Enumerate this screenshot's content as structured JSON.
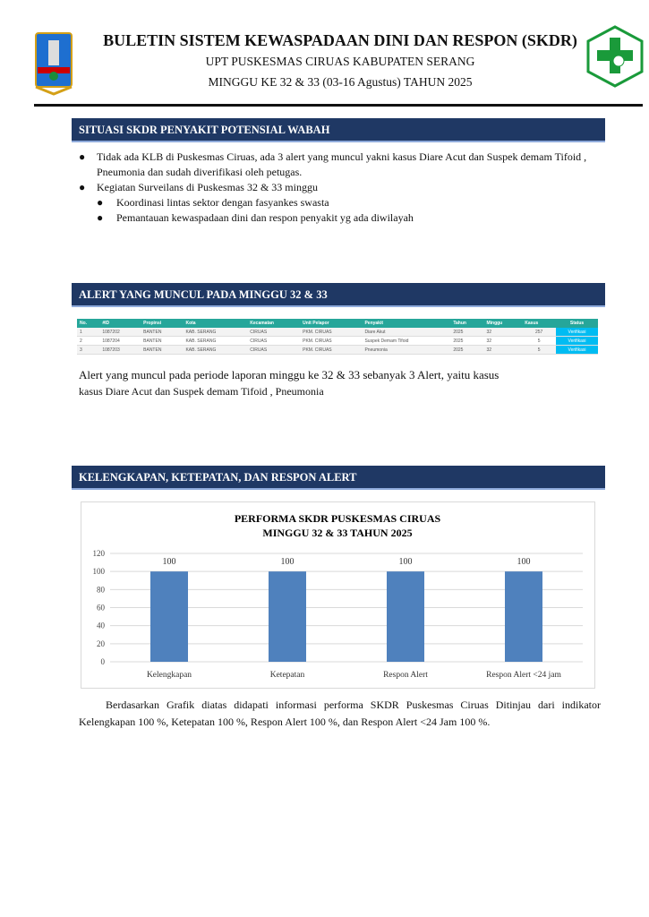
{
  "header": {
    "title": "BULETIN SISTEM KEWASPADAAN DINI DAN RESPON (SKDR)",
    "subtitle": "UPT PUSKESMAS CIRUAS  KABUPATEN SERANG",
    "period": "MINGGU KE  32 & 33 (03-16 Agustus) TAHUN 2025"
  },
  "section1": {
    "title": "SITUASI SKDR PENYAKIT POTENSIAL WABAH",
    "bullets": [
      "Tidak ada KLB di Puskesmas Ciruas, ada  3 alert yang muncul yakni kasus  Diare Acut dan Suspek demam Tifoid , Pneumonia dan sudah diverifikasi oleh petugas.",
      "Kegiatan Surveilans di Puskesmas 32 & 33 minggu"
    ],
    "subbullets": [
      "Koordinasi lintas sektor dengan fasyankes swasta",
      "Pemantauan kewaspadaan dini dan respon penyakit yg ada diwilayah"
    ]
  },
  "section2": {
    "title": "ALERT YANG MUNCUL PADA MINGGU 32 & 33",
    "table": {
      "headers": [
        "No.",
        "#ID",
        "Propinsi",
        "Kota",
        "Kecamatan",
        "Unit Pelapor",
        "Penyakit",
        "Tahun",
        "Minggu",
        "Kasus",
        "Status"
      ],
      "rows": [
        [
          "1",
          "1087202",
          "BANTEN",
          "KAB. SERANG",
          "CIRUAS",
          "PKM. CIRUAS",
          "Diare Akut",
          "2025",
          "32",
          "257",
          "Verifikasi"
        ],
        [
          "2",
          "1087204",
          "BANTEN",
          "KAB. SERANG",
          "CIRUAS",
          "PKM. CIRUAS",
          "Suspek Demam Tifoid",
          "2025",
          "32",
          "5",
          "Verifikasi"
        ],
        [
          "3",
          "1087203",
          "BANTEN",
          "KAB. SERANG",
          "CIRUAS",
          "PKM. CIRUAS",
          "Pneumonia",
          "2025",
          "32",
          "5",
          "Verifikasi"
        ]
      ]
    },
    "text_line1": "Alert yang muncul pada periode laporan minggu ke 32 & 33 sebanyak  3 Alert, yaitu kasus",
    "text_line2": "kasus  Diare Acut dan Suspek demam Tifoid , Pneumonia"
  },
  "section3": {
    "title": "KELENGKAPAN, KETEPATAN, DAN RESPON ALERT",
    "paragraph": "Berdasarkan Grafik diatas  didapati informasi performa SKDR Puskesmas Ciruas Ditinjau dari indikator Kelengkapan  100 %, Ketepatan  100 %, Respon Alert 100 %, dan Respon Alert <24 Jam 100 %."
  },
  "chart_data": {
    "type": "bar",
    "title_line1": "PERFORMA SKDR PUSKESMAS CIRUAS",
    "title_line2": "MINGGU 32 & 33  TAHUN 2025",
    "categories": [
      "Kelengkapan",
      "Ketepatan",
      "Respon Alert",
      "Respon Alert <24 jam"
    ],
    "values": [
      100,
      100,
      100,
      100
    ],
    "ylim": [
      0,
      120
    ],
    "yticks": [
      "0",
      "20",
      "40",
      "60",
      "80",
      "100",
      "120"
    ],
    "grid": true,
    "color": "#4f81bd"
  }
}
